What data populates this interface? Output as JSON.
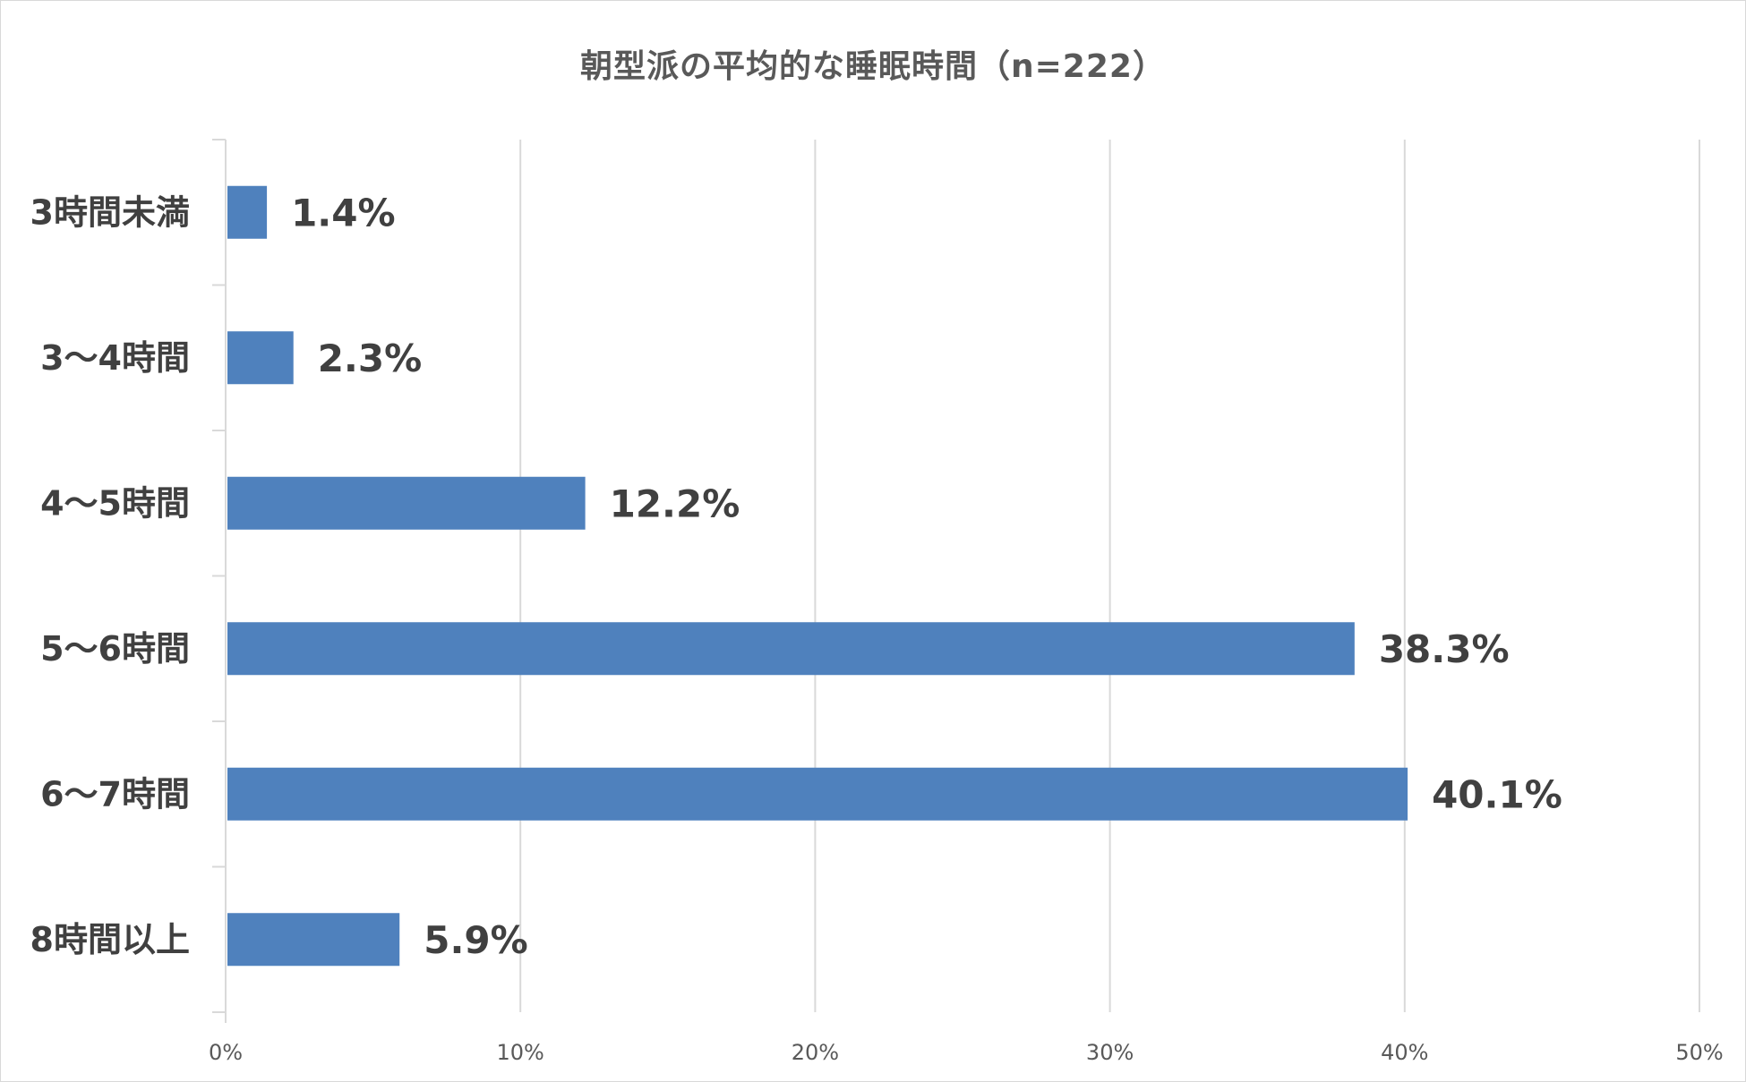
{
  "chart_data": {
    "type": "bar",
    "orientation": "horizontal",
    "title": "朝型派の平均的な睡眠時間（n=222）",
    "categories": [
      "3時間未満",
      "3～4時間",
      "4～5時間",
      "5～6時間",
      "6～7時間",
      "8時間以上"
    ],
    "values": [
      1.4,
      2.3,
      12.2,
      38.3,
      40.1,
      5.9
    ],
    "value_labels": [
      "1.4%",
      "2.3%",
      "12.2%",
      "38.3%",
      "40.1%",
      "5.9%"
    ],
    "xlim": [
      0,
      50
    ],
    "xticks": [
      0,
      10,
      20,
      30,
      40,
      50
    ],
    "xtick_labels": [
      "0%",
      "10%",
      "20%",
      "30%",
      "40%",
      "50%"
    ],
    "grid": "vertical",
    "legend": "none",
    "colors": {
      "bar": "#4f81bd",
      "grid": "#d9d9d9",
      "text": "#404040"
    }
  }
}
